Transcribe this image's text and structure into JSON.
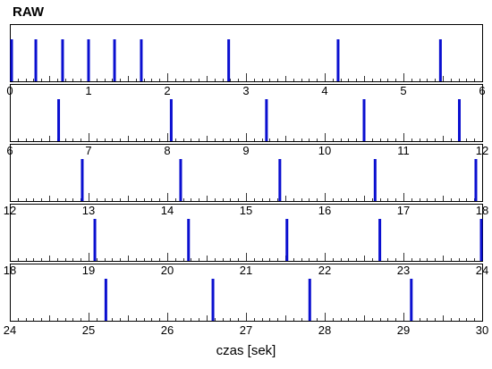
{
  "chart_data": {
    "type": "raster",
    "title": "RAW",
    "xlabel": "czas [sek]",
    "ylabel": "",
    "grid": false,
    "legend": "none",
    "spike_color": "#0a0fd0",
    "rows": [
      {
        "xlim": [
          0,
          6
        ],
        "tick_labels": [
          "0",
          "1",
          "2",
          "3",
          "4",
          "5",
          "6"
        ],
        "spikes": [
          0.02,
          0.33,
          0.67,
          1.0,
          1.33,
          1.67,
          2.78,
          4.17,
          5.47
        ]
      },
      {
        "xlim": [
          6,
          12
        ],
        "tick_labels": [
          "6",
          "7",
          "8",
          "9",
          "10",
          "11",
          "12"
        ],
        "spikes": [
          6.62,
          8.05,
          9.26,
          10.5,
          11.71
        ]
      },
      {
        "xlim": [
          12,
          18
        ],
        "tick_labels": [
          "12",
          "13",
          "14",
          "15",
          "16",
          "17",
          "18"
        ],
        "spikes": [
          12.92,
          14.17,
          15.43,
          16.64,
          17.92
        ]
      },
      {
        "xlim": [
          18,
          24
        ],
        "tick_labels": [
          "18",
          "19",
          "20",
          "21",
          "22",
          "23",
          "24"
        ],
        "spikes": [
          19.08,
          20.27,
          21.52,
          22.7,
          23.99
        ]
      },
      {
        "xlim": [
          24,
          30
        ],
        "tick_labels": [
          "24",
          "25",
          "26",
          "27",
          "28",
          "29",
          "30"
        ],
        "spikes": [
          25.22,
          26.58,
          27.81,
          29.1
        ]
      }
    ]
  }
}
